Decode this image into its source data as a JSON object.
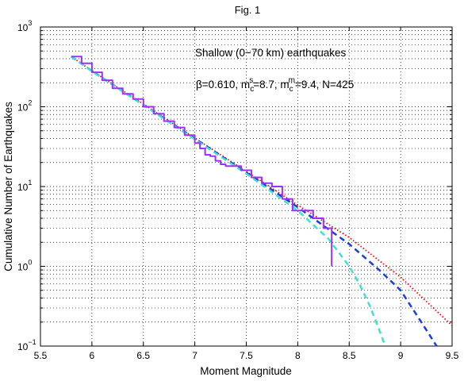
{
  "chart_data": {
    "type": "line",
    "title": "Fig. 1",
    "xlabel": "Moment Magnitude",
    "ylabel": "Cumulative Number of Earthquakes",
    "xlim": [
      5.5,
      9.5
    ],
    "ylim": [
      0.1,
      1000
    ],
    "yscale": "log",
    "grid": "dotted major and minor",
    "x_ticks": [
      "5.5",
      "6",
      "6.5",
      "7",
      "7.5",
      "8",
      "8.5",
      "9",
      "9.5"
    ],
    "y_ticks": [
      {
        "value": 0.1,
        "base": "10",
        "exp": "−1"
      },
      {
        "value": 1,
        "base": "10",
        "exp": "0"
      },
      {
        "value": 10,
        "base": "10",
        "exp": "1"
      },
      {
        "value": 100,
        "base": "10",
        "exp": "2"
      },
      {
        "value": 1000,
        "base": "10",
        "exp": "3"
      }
    ],
    "annotations": {
      "line1": "Shallow (0−70 km) earthquakes",
      "line2_parts": [
        "β=0.610, m",
        "c",
        "s",
        "=8.7, m",
        "c",
        "m",
        "=9.4, N=425"
      ]
    },
    "series": [
      {
        "color": "#9b30ff",
        "style": "solid",
        "x": [
          5.8,
          5.9,
          6.0,
          6.1,
          6.2,
          6.3,
          6.4,
          6.5,
          6.6,
          6.7,
          6.8,
          6.9,
          7.0,
          7.05,
          7.1,
          7.15,
          7.2,
          7.25,
          7.3,
          7.35,
          7.4,
          7.45,
          7.5,
          7.55,
          7.6,
          7.65,
          7.7,
          7.75,
          7.8,
          7.85,
          7.9,
          7.95,
          8.0,
          8.05,
          8.1,
          8.15,
          8.2,
          8.25,
          8.3,
          8.33
        ],
        "y": [
          425,
          350,
          270,
          215,
          170,
          145,
          125,
          100,
          82,
          66,
          55,
          44,
          35,
          30,
          25,
          24,
          21,
          19,
          18,
          18,
          18,
          16,
          16,
          13,
          13,
          11,
          11,
          10,
          10,
          7,
          7,
          5,
          5,
          5,
          5,
          4,
          4,
          3,
          3,
          1
        ]
      },
      {
        "color": "#ff0000",
        "style": "dotted",
        "x": [
          5.8,
          6.0,
          6.5,
          7.0,
          7.5,
          8.0,
          8.5,
          9.0,
          9.5
        ],
        "y": [
          425,
          282,
          108,
          40.5,
          15.5,
          5.85,
          2.3,
          0.73,
          0.18
        ]
      },
      {
        "color": "#1a3fd6",
        "style": "dashed",
        "x": [
          5.8,
          6.0,
          6.5,
          7.0,
          7.5,
          8.0,
          8.5,
          8.8,
          9.0,
          9.2,
          9.35
        ],
        "y": [
          425,
          280,
          106,
          40,
          15,
          5.5,
          1.9,
          0.88,
          0.5,
          0.2,
          0.1
        ]
      },
      {
        "color": "#40e0d0",
        "style": "dashed",
        "x": [
          5.8,
          6.0,
          6.5,
          7.0,
          7.5,
          8.0,
          8.3,
          8.5,
          8.6,
          8.7,
          8.8,
          8.85
        ],
        "y": [
          425,
          278,
          105,
          39,
          14.5,
          5.0,
          2.2,
          1.0,
          0.6,
          0.32,
          0.15,
          0.1
        ]
      }
    ]
  }
}
